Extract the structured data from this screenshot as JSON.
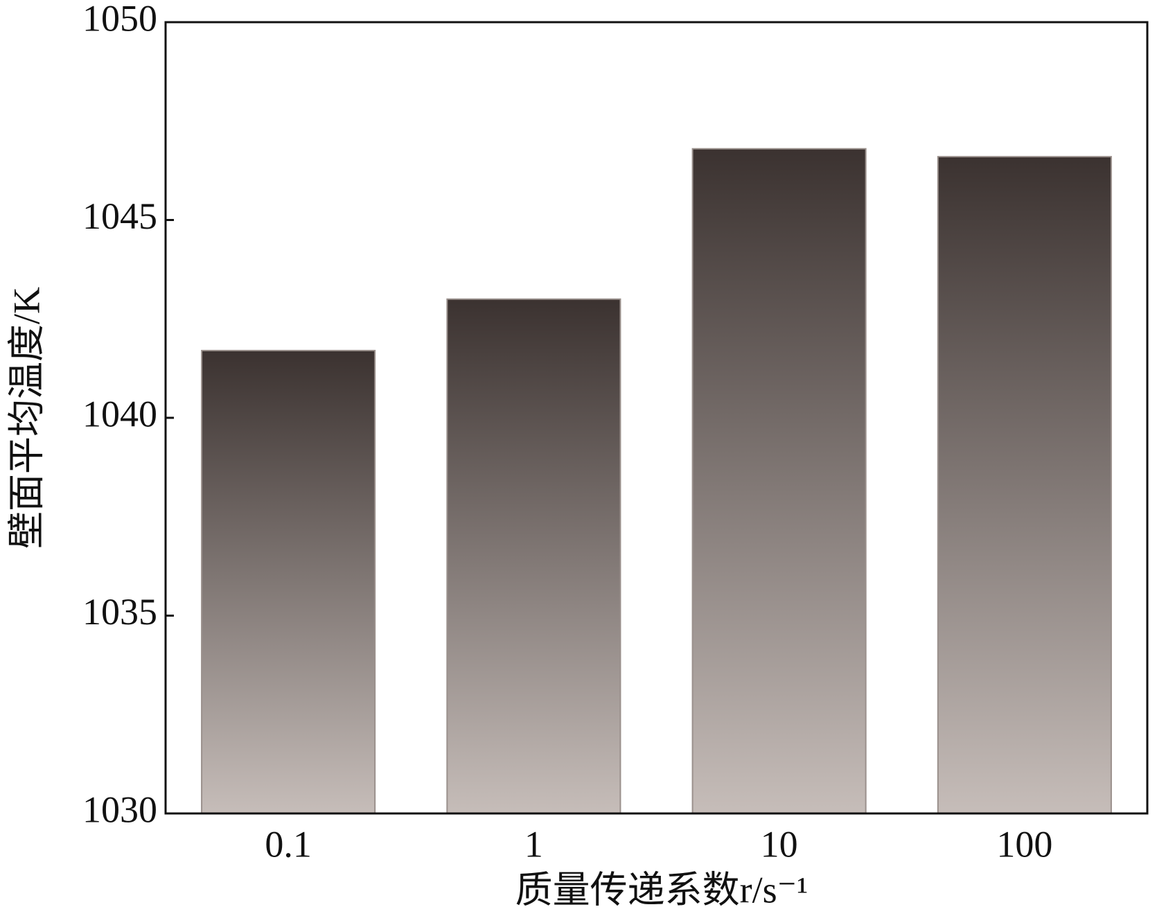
{
  "chart_data": {
    "type": "bar",
    "x_label": "质量传递系数r/s⁻¹",
    "y_label": "壁面平均温度/K",
    "categories": [
      "0.1",
      "1",
      "10",
      "100"
    ],
    "values": [
      1041.7,
      1043.0,
      1046.8,
      1046.6
    ],
    "color_top": "#3b3230",
    "color_bottom": "#c6bdb9",
    "ylim": [
      1030,
      1050
    ],
    "yticks": [
      1030,
      1035,
      1040,
      1045,
      1050
    ],
    "grid": false
  }
}
